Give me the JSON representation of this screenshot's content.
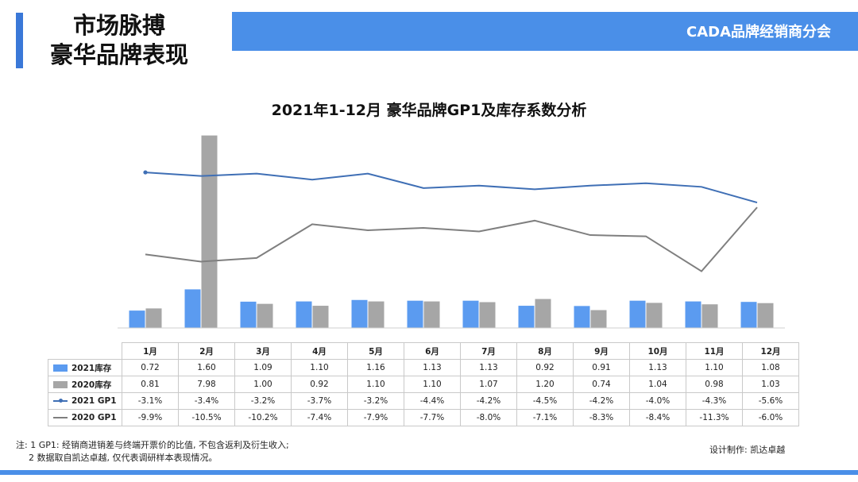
{
  "header": {
    "title_line1": "市场脉搏",
    "title_line2": "豪华品牌表现",
    "org": "CADA品牌经销商分会"
  },
  "colors": {
    "bar_2021": "#5b9bf0",
    "bar_2020": "#a6a6a6",
    "line_2021": "#3f6fb5",
    "line_2020": "#7f7f7f",
    "accent": "#4a8fe8"
  },
  "chart_data": {
    "type": "bar",
    "title": "2021年1-12月 豪华品牌GP1及库存系数分析",
    "categories": [
      "1月",
      "2月",
      "3月",
      "4月",
      "5月",
      "6月",
      "7月",
      "8月",
      "9月",
      "10月",
      "11月",
      "12月"
    ],
    "series": [
      {
        "name": "2021库存",
        "kind": "bar",
        "axis": "left",
        "values": [
          0.72,
          1.6,
          1.09,
          1.1,
          1.16,
          1.13,
          1.13,
          0.92,
          0.91,
          1.13,
          1.1,
          1.08
        ]
      },
      {
        "name": "2020库存",
        "kind": "bar",
        "axis": "left",
        "values": [
          0.81,
          7.98,
          1.0,
          0.92,
          1.1,
          1.1,
          1.07,
          1.2,
          0.74,
          1.04,
          0.98,
          1.03
        ]
      },
      {
        "name": "2021 GP1",
        "kind": "line",
        "axis": "right",
        "values": [
          -3.1,
          -3.4,
          -3.2,
          -3.7,
          -3.2,
          -4.4,
          -4.2,
          -4.5,
          -4.2,
          -4.0,
          -4.3,
          -5.6
        ]
      },
      {
        "name": "2020 GP1",
        "kind": "line",
        "axis": "right",
        "values": [
          -9.9,
          -10.5,
          -10.2,
          -7.4,
          -7.9,
          -7.7,
          -8.0,
          -7.1,
          -8.3,
          -8.4,
          -11.3,
          -6.0
        ]
      }
    ],
    "table_values": {
      "2021库存": [
        "0.72",
        "1.60",
        "1.09",
        "1.10",
        "1.16",
        "1.13",
        "1.13",
        "0.92",
        "0.91",
        "1.13",
        "1.10",
        "1.08"
      ],
      "2020库存": [
        "0.81",
        "7.98",
        "1.00",
        "0.92",
        "1.10",
        "1.10",
        "1.07",
        "1.20",
        "0.74",
        "1.04",
        "0.98",
        "1.03"
      ],
      "2021 GP1": [
        "-3.1%",
        "-3.4%",
        "-3.2%",
        "-3.7%",
        "-3.2%",
        "-4.4%",
        "-4.2%",
        "-4.5%",
        "-4.2%",
        "-4.0%",
        "-4.3%",
        "-5.6%"
      ],
      "2020 GP1": [
        "-9.9%",
        "-10.5%",
        "-10.2%",
        "-7.4%",
        "-7.9%",
        "-7.7%",
        "-8.0%",
        "-7.1%",
        "-8.3%",
        "-8.4%",
        "-11.3%",
        "-6.0%"
      ]
    },
    "bar_axis_range": [
      0,
      8.0
    ],
    "line_axis_range": [
      -16,
      0
    ],
    "grid": false,
    "legend": "table"
  },
  "notes": {
    "line1": "注: 1 GP1: 经销商进销差与终端开票价的比值, 不包含返利及衍生收入;",
    "line2": "2 数据取自凯达卓越, 仅代表调研样本表现情况。",
    "credit": "设计制作: 凯达卓越"
  }
}
